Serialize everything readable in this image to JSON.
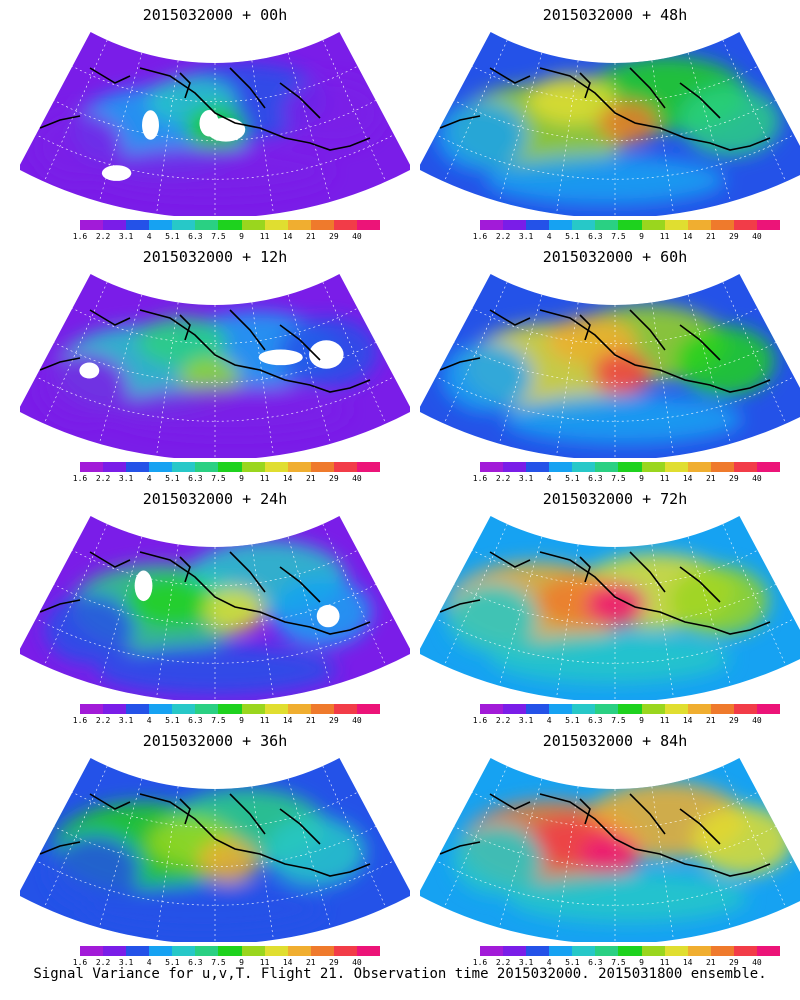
{
  "footer": "Signal Variance for u,v,T. Flight 21. Observation time 2015032000. 2015031800 ensemble.",
  "colorbar": {
    "labels": [
      "1.6",
      "2.2",
      "3.1",
      "4",
      "5.1",
      "6.3",
      "7.5",
      "9",
      "11",
      "14",
      "21",
      "29",
      "40"
    ],
    "colors": [
      "#a21bd8",
      "#7a1de8",
      "#2452e8",
      "#16a2f2",
      "#27c8c8",
      "#2ad083",
      "#1ed21e",
      "#9ad61e",
      "#e0de30",
      "#f0ae30",
      "#ef7a2c",
      "#f23c48",
      "#ec1478"
    ]
  },
  "panels": [
    {
      "title": "2015032000 + 00h",
      "level": 0
    },
    {
      "title": "2015032000 + 48h",
      "level": 4
    },
    {
      "title": "2015032000 + 12h",
      "level": 1
    },
    {
      "title": "2015032000 + 60h",
      "level": 5
    },
    {
      "title": "2015032000 + 24h",
      "level": 2
    },
    {
      "title": "2015032000 + 72h",
      "level": 6
    },
    {
      "title": "2015032000 + 36h",
      "level": 3
    },
    {
      "title": "2015032000 + 84h",
      "level": 7
    }
  ]
}
